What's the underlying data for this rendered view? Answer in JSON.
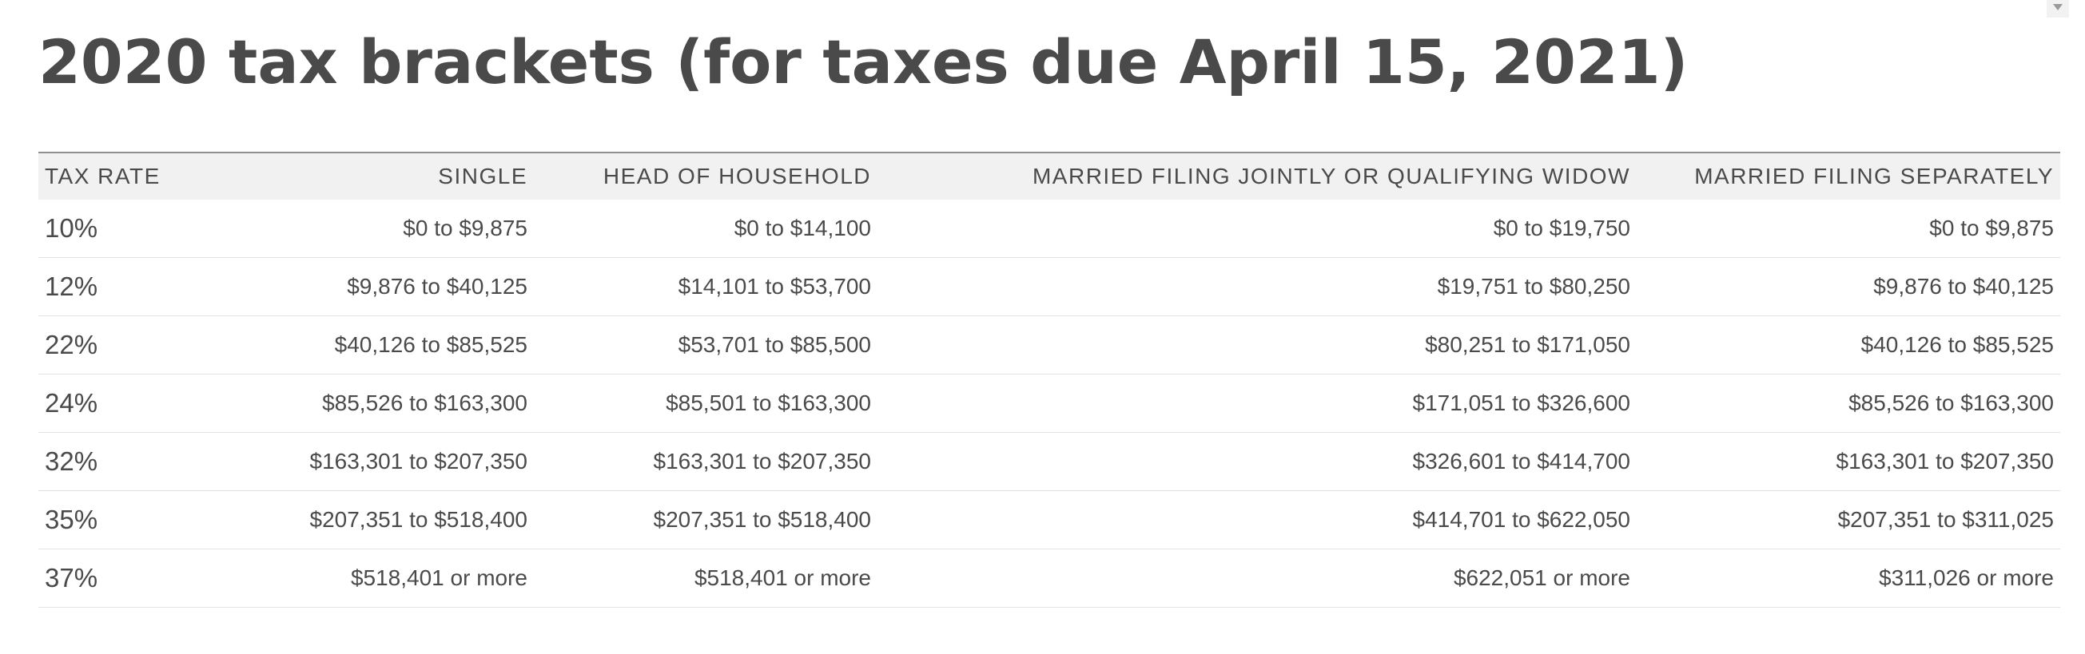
{
  "title": "2020 tax brackets (for taxes due April 15, 2021)",
  "table": {
    "headers": [
      "TAX RATE",
      "SINGLE",
      "HEAD OF HOUSEHOLD",
      "MARRIED FILING JOINTLY OR QUALIFYING WIDOW",
      "MARRIED FILING SEPARATELY"
    ],
    "rows": [
      [
        "10%",
        "$0 to $9,875",
        "$0 to $14,100",
        "$0 to $19,750",
        "$0 to $9,875"
      ],
      [
        "12%",
        "$9,876 to $40,125",
        "$14,101 to $53,700",
        "$19,751 to $80,250",
        "$9,876 to $40,125"
      ],
      [
        "22%",
        "$40,126 to $85,525",
        "$53,701 to $85,500",
        "$80,251 to $171,050",
        "$40,126 to $85,525"
      ],
      [
        "24%",
        "$85,526 to $163,300",
        "$85,501 to $163,300",
        "$171,051 to $326,600",
        "$85,526 to $163,300"
      ],
      [
        "32%",
        "$163,301 to $207,350",
        "$163,301 to $207,350",
        "$326,601 to $414,700",
        "$163,301 to $207,350"
      ],
      [
        "35%",
        "$207,351 to $518,400",
        "$207,351 to $518,400",
        "$414,701 to $622,050",
        "$207,351 to $311,025"
      ],
      [
        "37%",
        "$518,401 or more",
        "$518,401 or more",
        "$622,051 or more",
        "$311,026 or more"
      ]
    ]
  }
}
